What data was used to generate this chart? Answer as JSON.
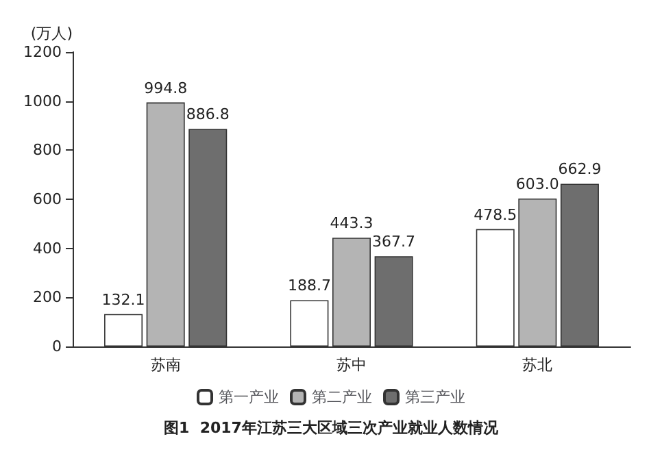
{
  "chart_data": {
    "type": "bar",
    "title": "图1  2017年江苏三大区域三次产业就业人数情况",
    "ylabel": "(万人)",
    "categories": [
      "苏南",
      "苏中",
      "苏北"
    ],
    "series": [
      {
        "name": "第一产业",
        "color": "#ffffff",
        "values": [
          132.1,
          188.7,
          478.5
        ]
      },
      {
        "name": "第二产业",
        "color": "#b4b4b4",
        "values": [
          994.8,
          443.3,
          603.0
        ]
      },
      {
        "name": "第三产业",
        "color": "#6e6e6e",
        "values": [
          886.8,
          367.7,
          662.9
        ]
      }
    ],
    "value_labels": [
      [
        "132.1",
        "188.7",
        "478.5"
      ],
      [
        "994.8",
        "443.3",
        "603.0"
      ],
      [
        "886.8",
        "367.7",
        "662.9"
      ]
    ],
    "ylim": [
      0,
      1200
    ],
    "yticks": [
      0,
      200,
      400,
      600,
      800,
      1000,
      1200
    ],
    "grid": false,
    "legend": "bottom"
  }
}
